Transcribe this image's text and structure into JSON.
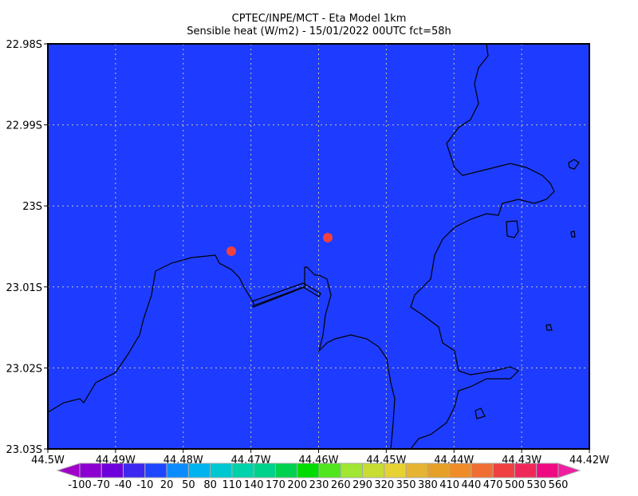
{
  "title": {
    "line1": "CPTEC/INPE/MCT -  Eta Model 1km",
    "line2": "Sensible heat (W/m2) - 15/01/2022 00UTC fct=58h"
  },
  "map": {
    "background_color": "#1e3cff",
    "lat_labels": [
      "22.98S",
      "22.99S",
      "23S",
      "23.01S",
      "23.02S",
      "23.03S"
    ],
    "lon_labels": [
      "44.5W",
      "44.49W",
      "44.48W",
      "44.47W",
      "44.46W",
      "44.45W",
      "44.44W",
      "44.43W",
      "44.42W"
    ],
    "hotspots_color": "#f04040"
  },
  "colorbar": {
    "labels": [
      "-100",
      "-70",
      "-40",
      "-10",
      "20",
      "50",
      "80",
      "110",
      "140",
      "170",
      "200",
      "230",
      "260",
      "290",
      "320",
      "350",
      "380",
      "410",
      "440",
      "470",
      "500",
      "530",
      "560"
    ],
    "colors": [
      "#8c00d2",
      "#6e00dc",
      "#3c28f0",
      "#1e46ff",
      "#0a8cff",
      "#00b4f0",
      "#00c8d2",
      "#00d2aa",
      "#00d28c",
      "#00d250",
      "#00dc00",
      "#50e61e",
      "#a0e632",
      "#c8dc32",
      "#e6d232",
      "#e6b432",
      "#e6a028",
      "#f08c28",
      "#f06e32",
      "#f04040",
      "#f0285a",
      "#f00a82"
    ],
    "low_color": "#a000c8",
    "high_color": "#f01ea0"
  }
}
